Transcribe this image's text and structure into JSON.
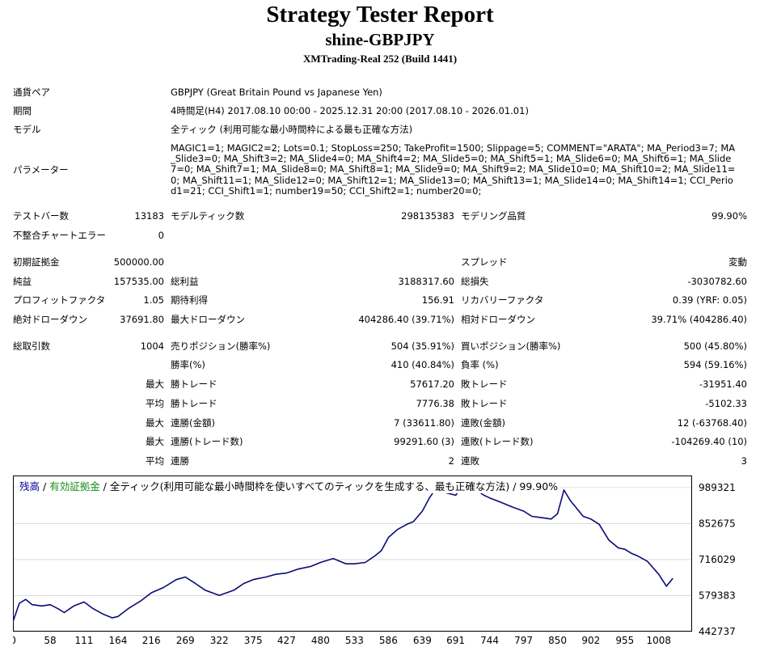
{
  "header": {
    "title": "Strategy Tester Report",
    "subtitle": "shine-GBPJPY",
    "server": "XMTrading-Real 252 (Build 1441)"
  },
  "info": {
    "symbol_label": "通貨ペア",
    "symbol_value": "GBPJPY (Great Britain Pound vs Japanese Yen)",
    "period_label": "期間",
    "period_value": "4時間足(H4) 2017.08.10 00:00 - 2025.12.31 20:00 (2017.08.10 - 2026.01.01)",
    "model_label": "モデル",
    "model_value": "全ティック (利用可能な最小時間枠による最も正確な方法)",
    "params_label": "パラメーター",
    "params_value": "MAGIC1=1; MAGIC2=2; Lots=0.1; StopLoss=250; TakeProfit=1500; Slippage=5; COMMENT=\"ARATA\"; MA_Period3=7; MA_Slide3=0; MA_Shift3=2; MA_Slide4=0; MA_Shift4=2; MA_Slide5=0; MA_Shift5=1; MA_Slide6=0; MA_Shift6=1; MA_Slide7=0; MA_Shift7=1; MA_Slide8=0; MA_Shift8=1; MA_Slide9=0; MA_Shift9=2; MA_Slide10=0; MA_Shift10=2; MA_Slide11=0; MA_Shift11=1; MA_Slide12=0; MA_Shift12=1; MA_Slide13=0; MA_Shift13=1; MA_Slide14=0; MA_Shift14=1; CCI_Period1=21; CCI_Shift1=1; number19=50; CCI_Shift2=1; number20=0;"
  },
  "stats": {
    "bars_label": "テストバー数",
    "bars_value": "13183",
    "ticks_label": "モデルティック数",
    "ticks_value": "298135383",
    "quality_label": "モデリング品質",
    "quality_value": "99.90%",
    "mismatch_label": "不整合チャートエラー",
    "mismatch_value": "0",
    "deposit_label": "初期証拠金",
    "deposit_value": "500000.00",
    "spread_label": "スプレッド",
    "spread_value": "変動",
    "net_label": "純益",
    "net_value": "157535.00",
    "gross_profit_label": "総利益",
    "gross_profit_value": "3188317.60",
    "gross_loss_label": "総損失",
    "gross_loss_value": "-3030782.60",
    "pf_label": "プロフィットファクタ",
    "pf_value": "1.05",
    "expected_label": "期待利得",
    "expected_value": "156.91",
    "recovery_label": "リカバリーファクタ",
    "recovery_value": "0.39 (YRF: 0.05)",
    "abs_dd_label": "絶対ドローダウン",
    "abs_dd_value": "37691.80",
    "max_dd_label": "最大ドローダウン",
    "max_dd_value": "404286.40 (39.71%)",
    "rel_dd_label": "相対ドローダウン",
    "rel_dd_value": "39.71% (404286.40)",
    "total_label": "総取引数",
    "total_value": "1004",
    "short_label": "売りポジション(勝率%)",
    "short_value": "504 (35.91%)",
    "long_label": "買いポジション(勝率%)",
    "long_value": "500 (45.80%)",
    "win_rate_label": "勝率(%)",
    "win_rate_value": "410 (40.84%)",
    "loss_rate_label": "負率 (%)",
    "loss_rate_value": "594 (59.16%)",
    "max_label": "最大",
    "avg_label": "平均",
    "largest_win_label": "勝トレード",
    "largest_win_value": "57617.20",
    "largest_loss_label": "敗トレード",
    "largest_loss_value": "-31951.40",
    "avg_win_label": "勝トレード",
    "avg_win_value": "7776.38",
    "avg_loss_label": "敗トレード",
    "avg_loss_value": "-5102.33",
    "max_cons_wins_label": "連勝(金額)",
    "max_cons_wins_value": "7 (33611.80)",
    "max_cons_losses_label": "連敗(金額)",
    "max_cons_losses_value": "12 (-63768.40)",
    "max_cons_profit_label": "連勝(トレード数)",
    "max_cons_profit_value": "99291.60 (3)",
    "max_cons_loss_label": "連敗(トレード数)",
    "max_cons_loss_value": "-104269.40 (10)",
    "avg_cons_wins_label": "連勝",
    "avg_cons_wins_value": "2",
    "avg_cons_losses_label": "連敗",
    "avg_cons_losses_value": "3"
  },
  "chart_legend": {
    "balance": "残高",
    "sep1": " / ",
    "equity": "有効証拠金",
    "rest": " / 全ティック(利用可能な最小時間枠を使いすべてのティックを生成する、最も正確な方法) / 99.90%"
  },
  "colors": {
    "balance": "#0a0a7a",
    "equity": "#1a8c1a",
    "axis": "#000000",
    "grid": "#c8c8c8"
  },
  "chart_data": {
    "type": "line",
    "xlabel": "",
    "ylabel": "",
    "x_ticks": [
      0,
      58,
      111,
      164,
      216,
      269,
      322,
      375,
      427,
      480,
      533,
      586,
      639,
      691,
      744,
      797,
      850,
      902,
      955,
      1008
    ],
    "y_ticks": [
      989321,
      852675,
      716029,
      579383,
      442737
    ],
    "xlim": [
      0,
      1060
    ],
    "ylim": [
      442737,
      1035000
    ],
    "series": [
      {
        "x": [
          0,
          10,
          20,
          30,
          45,
          58,
          70,
          80,
          95,
          111,
          125,
          140,
          155,
          164,
          180,
          200,
          216,
          235,
          255,
          269,
          285,
          300,
          322,
          345,
          360,
          375,
          395,
          410,
          427,
          445,
          465,
          480,
          500,
          520,
          533,
          550,
          565,
          575,
          586,
          600,
          615,
          625,
          639,
          650,
          660,
          675,
          691,
          700,
          720,
          735,
          744,
          760,
          780,
          797,
          810,
          825,
          840,
          850,
          860,
          870,
          880,
          890,
          902,
          915,
          930,
          945,
          955,
          965,
          975,
          990,
          1008,
          1020,
          1030
        ],
        "y": [
          480000,
          550000,
          565000,
          545000,
          540000,
          545000,
          530000,
          515000,
          540000,
          555000,
          530000,
          510000,
          495000,
          500000,
          530000,
          560000,
          590000,
          610000,
          640000,
          650000,
          625000,
          600000,
          580000,
          600000,
          625000,
          640000,
          650000,
          660000,
          665000,
          680000,
          690000,
          705000,
          720000,
          700000,
          700000,
          705000,
          730000,
          750000,
          800000,
          830000,
          850000,
          860000,
          900000,
          950000,
          985000,
          970000,
          960000,
          990000,
          985000,
          960000,
          950000,
          935000,
          915000,
          900000,
          880000,
          875000,
          870000,
          890000,
          980000,
          940000,
          910000,
          880000,
          870000,
          850000,
          790000,
          760000,
          755000,
          740000,
          730000,
          710000,
          660000,
          615000,
          645000
        ]
      }
    ]
  }
}
